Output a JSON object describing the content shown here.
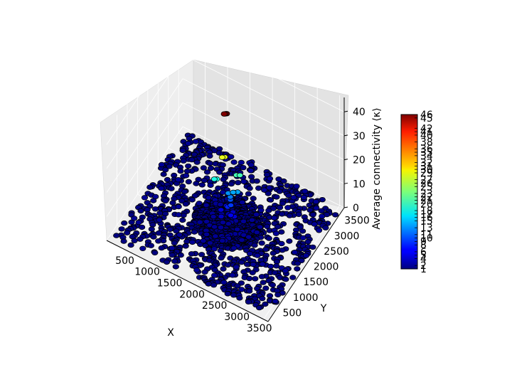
{
  "chart_data": {
    "type": "scatter",
    "projection": "3d",
    "xlabel": "X",
    "ylabel": "Y",
    "zlabel": "Average connectivity ⟨κ⟩",
    "xlim": [
      0,
      3600
    ],
    "ylim": [
      0,
      3700
    ],
    "zlim": [
      0,
      46
    ],
    "x_ticks": [
      500,
      1000,
      1500,
      2000,
      2500,
      3000,
      3500
    ],
    "y_ticks": [
      500,
      1000,
      1500,
      2000,
      2500,
      3000,
      3500
    ],
    "z_ticks": [
      0,
      10,
      20,
      30,
      40
    ],
    "grid": true,
    "colormap": "jet",
    "colorbar": {
      "min": 1,
      "max": 46,
      "tick_labels": [
        "1",
        "2",
        "4",
        "5",
        "6",
        "8",
        "9",
        "10",
        "11",
        "13",
        "15",
        "16",
        "17",
        "18",
        "20",
        "21",
        "22",
        "23",
        "25",
        "26",
        "27",
        "29",
        "30",
        "31",
        "32",
        "34",
        "35",
        "36",
        "38",
        "40",
        "41",
        "42",
        "45",
        "46"
      ]
    },
    "points": [
      {
        "x": 1800,
        "y": 1850,
        "z": 46
      },
      {
        "x": 1780,
        "y": 1830,
        "z": 46
      },
      {
        "x": 1820,
        "y": 1870,
        "z": 46
      },
      {
        "x": 1750,
        "y": 1800,
        "z": 28
      },
      {
        "x": 1790,
        "y": 1840,
        "z": 28
      },
      {
        "x": 2000,
        "y": 1950,
        "z": 21
      },
      {
        "x": 2060,
        "y": 1990,
        "z": 21
      },
      {
        "x": 1620,
        "y": 1700,
        "z": 19
      },
      {
        "x": 1660,
        "y": 1730,
        "z": 19
      },
      {
        "x": 1950,
        "y": 1900,
        "z": 14
      },
      {
        "x": 2020,
        "y": 1960,
        "z": 14
      },
      {
        "x": 1850,
        "y": 1880,
        "z": 13
      },
      {
        "x": 1900,
        "y": 1870,
        "z": 12
      },
      {
        "x": 1880,
        "y": 1920,
        "z": 10
      },
      {
        "x": 1920,
        "y": 1850,
        "z": 9
      },
      {
        "x": 1860,
        "y": 1830,
        "z": 8
      },
      {
        "x": 1800,
        "y": 1900,
        "z": 7
      },
      {
        "x": 1950,
        "y": 1780,
        "z": 6
      },
      {
        "x": 1700,
        "y": 1850,
        "z": 5
      },
      {
        "x": 2000,
        "y": 1850,
        "z": 5
      },
      {
        "x": 1900,
        "y": 2000,
        "z": 4
      },
      {
        "x": 1750,
        "y": 1750,
        "z": 4
      },
      {
        "x": 1820,
        "y": 1960,
        "z": 3
      }
    ],
    "background_points": {
      "count": 1400,
      "x_range": [
        120,
        3560
      ],
      "y_range": [
        120,
        3580
      ],
      "z": 1,
      "dense_center": [
        1850,
        1850
      ],
      "dense_radius": 700
    }
  }
}
